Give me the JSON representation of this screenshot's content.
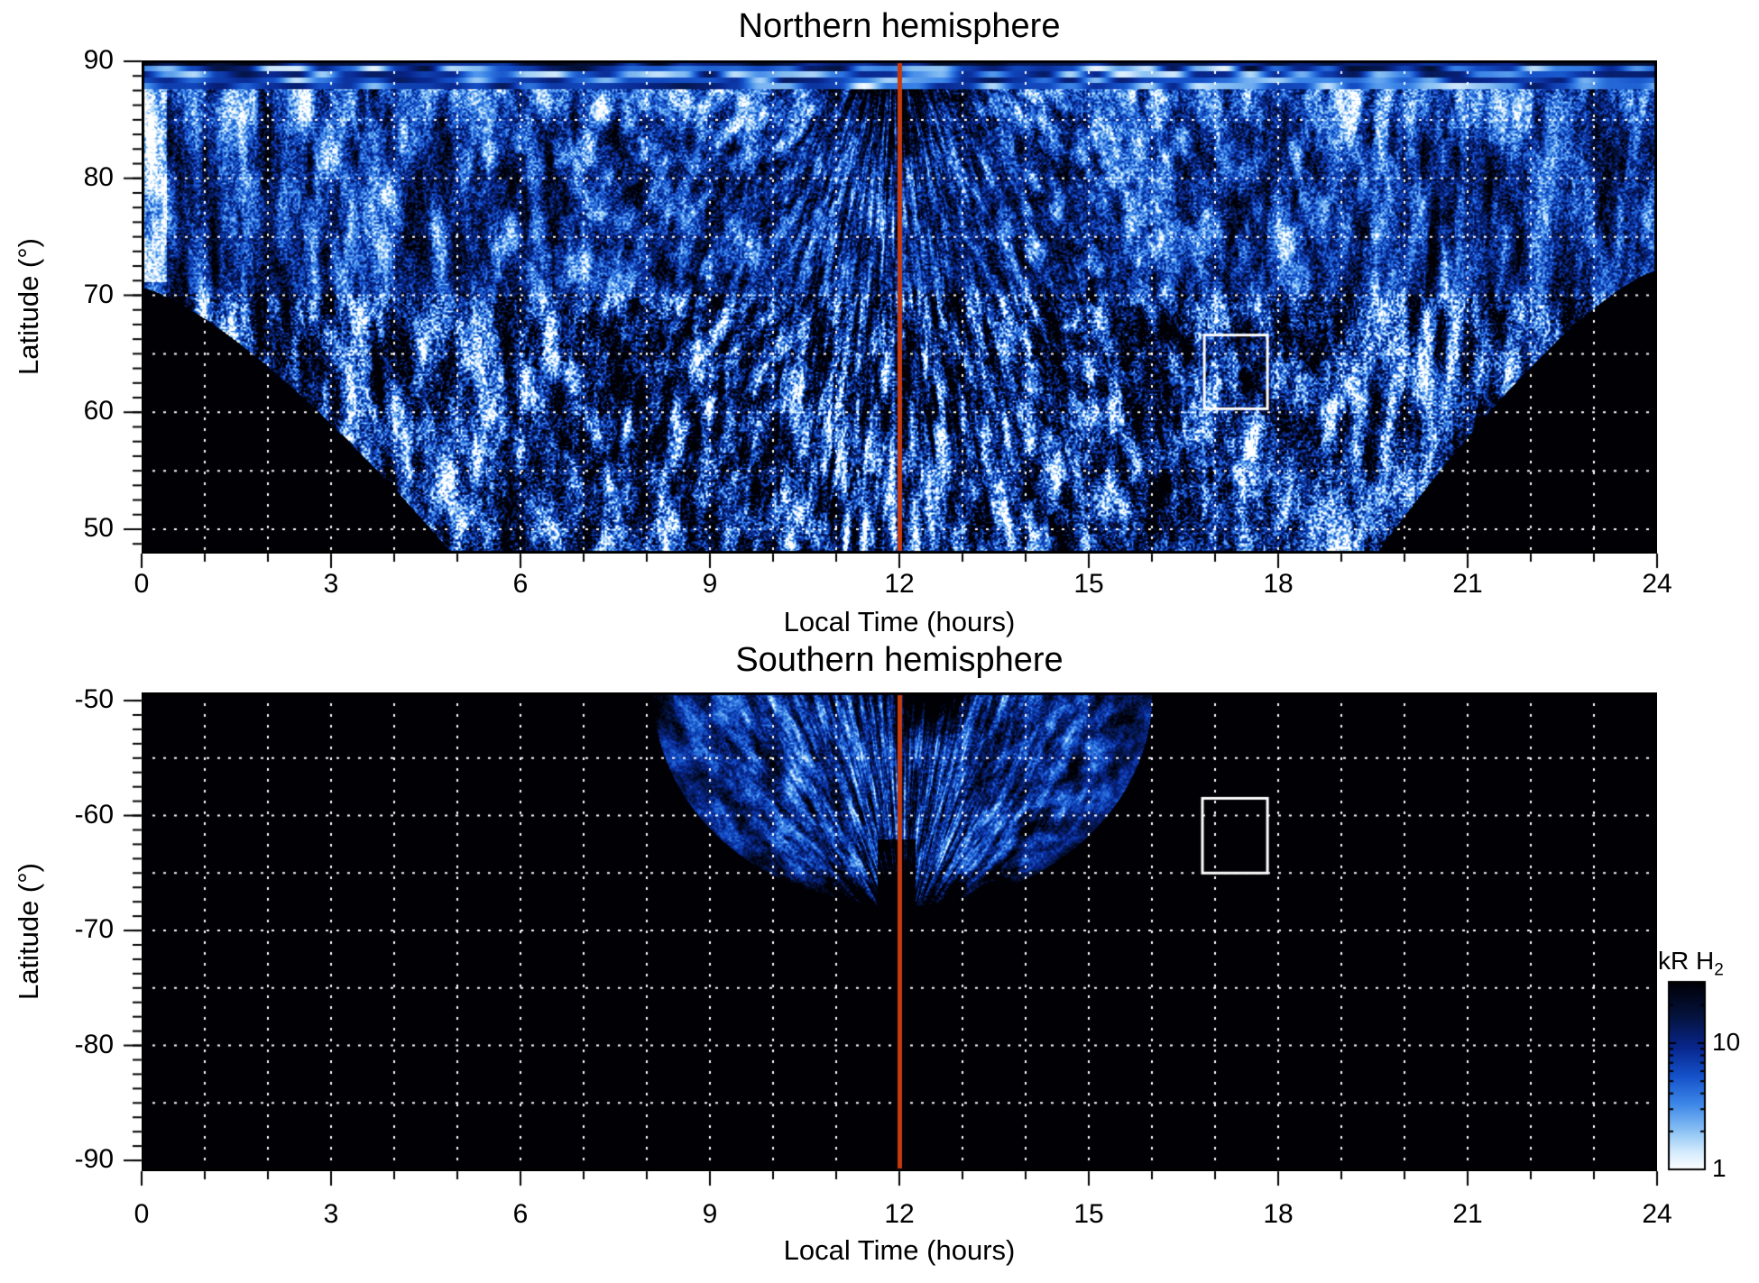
{
  "chart_data": {
    "panels": [
      {
        "id": "north",
        "type": "heatmap",
        "title": "Northern hemisphere",
        "xlabel": "Local Time (hours)",
        "ylabel": "Latitude (°)",
        "xlim": [
          0,
          24
        ],
        "xticks": [
          0,
          3,
          6,
          9,
          12,
          15,
          18,
          21,
          24
        ],
        "x_minor_step_hours": 1,
        "ylim": [
          47.9,
          90
        ],
        "yticks": [
          90,
          80,
          70,
          60,
          50
        ],
        "y_minor_step_deg": 1.25,
        "grid": {
          "x_step_hours": 1,
          "y_lines_deg": [
            85,
            80,
            75,
            70,
            65,
            60,
            55,
            50
          ],
          "style": "dotted",
          "color": "#ffffff"
        },
        "background_color": "#000000",
        "noon_line": {
          "x_hours": 12,
          "color": "#c63b10"
        },
        "highlight_box": {
          "lt0": 16.83,
          "lt1": 17.83,
          "lat0": 60.3,
          "lat1": 66.6,
          "color": "#ffffff"
        },
        "no_data_regions": [
          {
            "corner": "lower-left",
            "boundary_from": {
              "lt": 0,
              "lat": 70.5
            },
            "boundary_to": {
              "lt": 4.9,
              "lat": 48
            }
          },
          {
            "corner": "lower-right",
            "boundary_from": {
              "lt": 19.55,
              "lat": 48
            },
            "boundary_to": {
              "lt": 24,
              "lat": 72
            }
          }
        ],
        "features": [
          "dense blue-to-white H2 emission streaks radiating outward from near local noon",
          "bright horizontal emission band at latitudes 87-90 across most local times",
          "dark wedge near local noon above ~82 latitude",
          "high-contrast speckled emission between LT 5 and 19.5 down to ~48 latitude"
        ]
      },
      {
        "id": "south",
        "type": "heatmap",
        "title": "Southern hemisphere",
        "xlabel": "Local Time (hours)",
        "ylabel": "Latitude (°)",
        "xlim": [
          0,
          24
        ],
        "xticks": [
          0,
          3,
          6,
          9,
          12,
          15,
          18,
          21,
          24
        ],
        "x_minor_step_hours": 1,
        "ylim": [
          -90.9,
          -49.3
        ],
        "yticks": [
          -50,
          -60,
          -70,
          -80,
          -90
        ],
        "y_minor_step_deg": 1.25,
        "grid": {
          "x_step_hours": 1,
          "y_lines_deg": [
            -55,
            -60,
            -65,
            -70,
            -75,
            -80,
            -85
          ],
          "style": "dotted",
          "color": "#ffffff"
        },
        "background_color": "#000000",
        "noon_line": {
          "x_hours": 12,
          "color": "#c63b10"
        },
        "highlight_box": {
          "lt0": 16.8,
          "lt1": 17.83,
          "lat0": -65.0,
          "lat1": -58.5,
          "color": "#ffffff"
        },
        "coverage_region": {
          "shape": "fan",
          "lt_min": 8.1,
          "lt_max": 16.1,
          "lat_top": -49.3,
          "lat_bottom": -67.8,
          "description": "fan of near-vertical emission streaks converging toward ~LT 12 below -67; rest of panel is black (no data)"
        },
        "features": [
          "bright white streak clusters near LT 9-10 and LT 12-14 at latitudes -50 to -58",
          "dark notch at top near LT 12-13",
          "small notch in lower boundary at local noon"
        ]
      }
    ],
    "colorbar": {
      "label_main": "kR H",
      "label_sub": "2",
      "scale": "log",
      "range_min": 1,
      "range_max": 30,
      "tick_values": [
        10,
        1
      ],
      "tick_labels": [
        "10",
        "1"
      ],
      "minor_tick_values": [
        2,
        3,
        4,
        5,
        6,
        7,
        8,
        9,
        20,
        30
      ],
      "palette": [
        [
          0.0,
          "#000005"
        ],
        [
          0.18,
          "#04123c"
        ],
        [
          0.35,
          "#08268c"
        ],
        [
          0.5,
          "#1450c8"
        ],
        [
          0.65,
          "#3c86e8"
        ],
        [
          0.8,
          "#8ec4f4"
        ],
        [
          0.9,
          "#cfe8fc"
        ],
        [
          1.0,
          "#ffffff"
        ]
      ]
    }
  }
}
